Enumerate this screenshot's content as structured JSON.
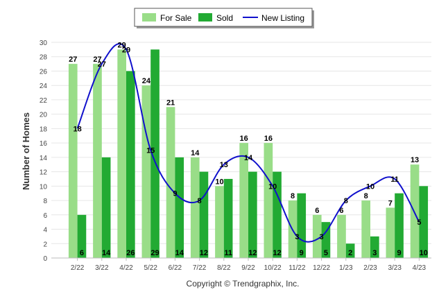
{
  "chart_data": {
    "type": "bar",
    "categories": [
      "2/22",
      "3/22",
      "4/22",
      "5/22",
      "6/22",
      "7/22",
      "8/22",
      "9/22",
      "10/22",
      "11/22",
      "12/22",
      "1/23",
      "2/23",
      "3/23",
      "4/23"
    ],
    "series": [
      {
        "name": "For Sale",
        "type": "bar",
        "color": "#99dd88",
        "values": [
          27,
          27,
          29,
          24,
          21,
          14,
          10,
          16,
          16,
          8,
          6,
          6,
          8,
          7,
          13
        ]
      },
      {
        "name": "Sold",
        "type": "bar",
        "color": "#22aa33",
        "values": [
          6,
          14,
          26,
          29,
          14,
          12,
          11,
          12,
          12,
          9,
          5,
          2,
          3,
          9,
          10
        ]
      },
      {
        "name": "New Listing",
        "type": "line",
        "color": "#1010cc",
        "values": [
          18,
          27,
          29,
          15,
          9,
          8,
          13,
          14,
          10,
          3,
          3,
          8,
          10,
          11,
          5
        ]
      }
    ],
    "title": "",
    "xlabel": "",
    "ylabel": "Number of Homes",
    "ylim": [
      0,
      30
    ],
    "yticks": [
      0,
      2,
      4,
      6,
      8,
      10,
      12,
      14,
      16,
      18,
      20,
      22,
      24,
      26,
      28,
      30
    ],
    "legend_position": "top-center",
    "grid": true
  },
  "footer": {
    "copyright": "Copyright © Trendgraphix, Inc."
  }
}
